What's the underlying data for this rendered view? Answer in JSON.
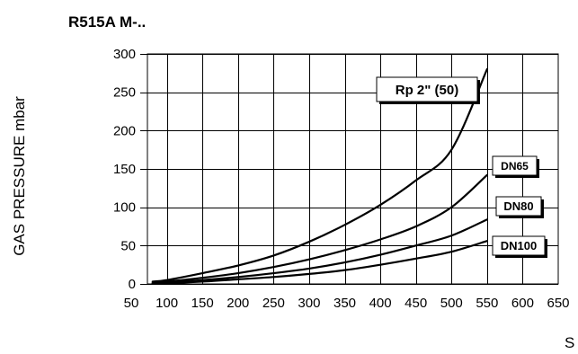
{
  "chart_data": {
    "type": "line",
    "title": "R515A M-..",
    "ylabel": "GAS PRESSURE mbar",
    "xlabel": "S",
    "xlim": [
      50,
      650
    ],
    "ylim": [
      0,
      300
    ],
    "x_ticks": [
      50,
      100,
      150,
      200,
      250,
      300,
      350,
      400,
      450,
      500,
      550,
      600,
      650
    ],
    "y_ticks": [
      0,
      50,
      100,
      150,
      200,
      250,
      300
    ],
    "grid": true,
    "series": [
      {
        "name": "Rp 2\" (50)",
        "x": [
          80,
          100,
          150,
          200,
          250,
          300,
          350,
          400,
          450,
          500,
          550
        ],
        "values": [
          3,
          5,
          14,
          24,
          37,
          55,
          77,
          103,
          135,
          175,
          280
        ]
      },
      {
        "name": "DN65",
        "x": [
          80,
          100,
          150,
          200,
          250,
          300,
          350,
          400,
          450,
          500,
          550
        ],
        "values": [
          1,
          3,
          8,
          14,
          22,
          32,
          44,
          58,
          75,
          100,
          142
        ]
      },
      {
        "name": "DN80",
        "x": [
          80,
          100,
          150,
          200,
          250,
          300,
          350,
          400,
          450,
          500,
          550
        ],
        "values": [
          1,
          2,
          5,
          9,
          14,
          20,
          28,
          38,
          50,
          63,
          84
        ]
      },
      {
        "name": "DN100",
        "x": [
          80,
          100,
          150,
          200,
          250,
          300,
          350,
          400,
          450,
          500,
          550
        ],
        "values": [
          1,
          1,
          3,
          6,
          9,
          13,
          18,
          25,
          33,
          42,
          56
        ]
      }
    ]
  }
}
